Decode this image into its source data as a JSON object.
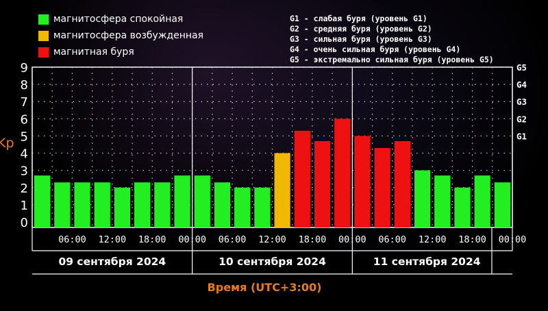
{
  "legend": {
    "items": [
      {
        "label": "магнитосфера спокойная",
        "color": "#22ee22"
      },
      {
        "label": "магнитосфера возбужденная",
        "color": "#f0b800"
      },
      {
        "label": "магнитная буря",
        "color": "#ee1111"
      }
    ],
    "g_levels": [
      "G1 - слабая буря (уровень G1)",
      "G2 - средняя буря (уровень G2)",
      "G3 - сильная буря (уровень G3)",
      "G4 - очень сильная буря (уровень G4)",
      "G5 - экстремально сильная буря (уровень G5)"
    ]
  },
  "chart_data": {
    "type": "bar",
    "ylabel": "Kp",
    "xlabel": "Время (UTC+3:00)",
    "ylim": [
      0,
      9
    ],
    "y_ticks": [
      "0",
      "1",
      "2",
      "3",
      "4",
      "5",
      "6",
      "7",
      "8",
      "9"
    ],
    "right_ticks": [
      {
        "label": "G1",
        "value": 5
      },
      {
        "label": "G2",
        "value": 6
      },
      {
        "label": "G3",
        "value": 7
      },
      {
        "label": "G4",
        "value": 8
      },
      {
        "label": "G5",
        "value": 9
      }
    ],
    "time_ticks": [
      "06:00",
      "12:00",
      "18:00",
      "00:00",
      "06:00",
      "12:00",
      "18:00",
      "00:00",
      "06:00",
      "12:00",
      "18:00",
      "00:00"
    ],
    "days": [
      "09 сентября 2024",
      "10 сентября 2024",
      "11 сентября 2024"
    ],
    "values": [
      2.7,
      2.3,
      2.3,
      2.3,
      2.0,
      2.3,
      2.3,
      2.7,
      2.7,
      2.3,
      2.0,
      2.0,
      4.0,
      5.3,
      4.7,
      6.0,
      5.0,
      4.3,
      4.7,
      3.0,
      2.7,
      2.0,
      2.7,
      2.3
    ],
    "levels": [
      "quiet",
      "quiet",
      "quiet",
      "quiet",
      "quiet",
      "quiet",
      "quiet",
      "quiet",
      "quiet",
      "quiet",
      "quiet",
      "quiet",
      "active",
      "storm",
      "storm",
      "storm",
      "storm",
      "storm",
      "storm",
      "quiet",
      "quiet",
      "quiet",
      "quiet",
      "quiet"
    ],
    "colors": {
      "quiet": "#22ee22",
      "active": "#f0b800",
      "storm": "#ee1111",
      "axis_label": "#e87a1e"
    },
    "grid": true
  }
}
